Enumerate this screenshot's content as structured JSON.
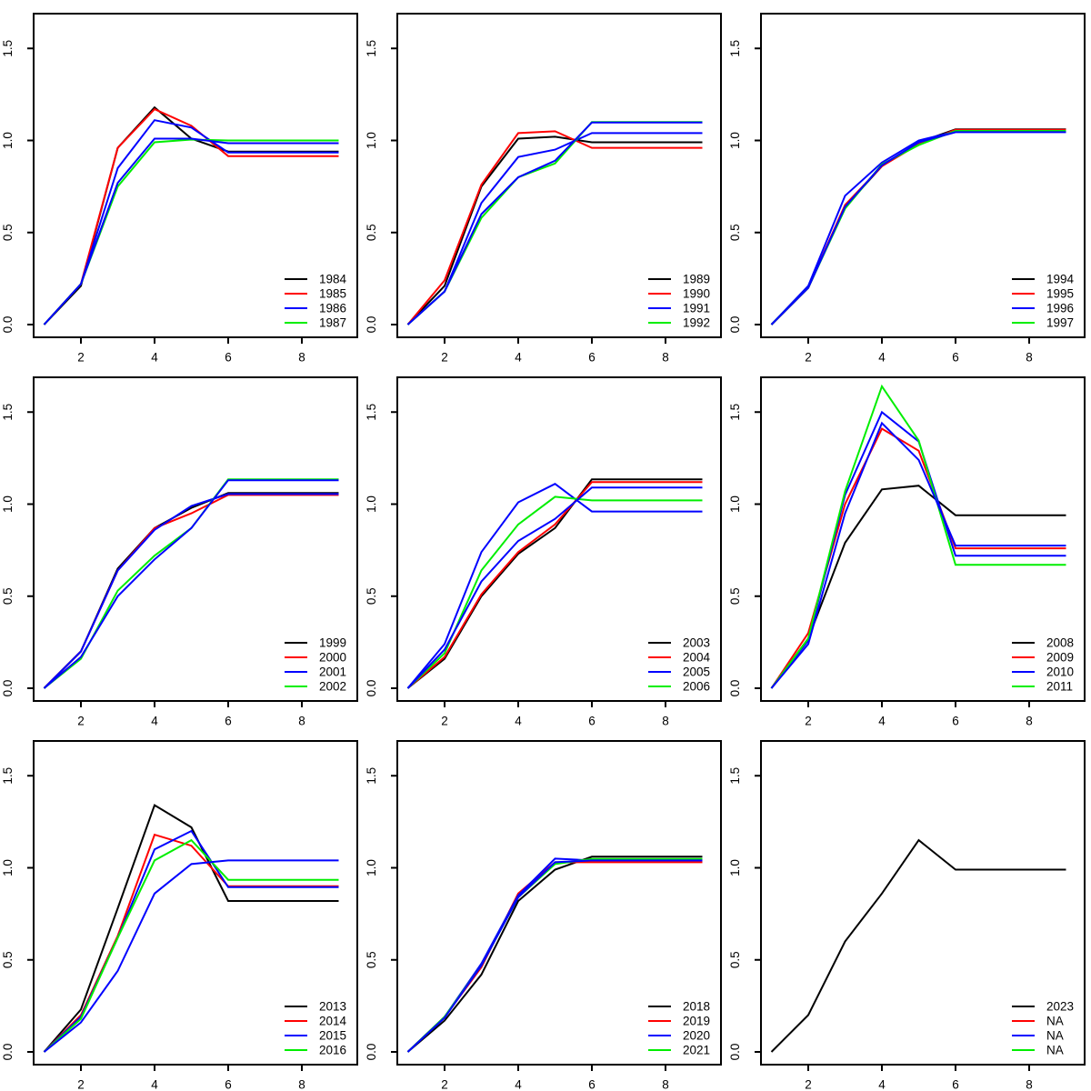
{
  "figure": {
    "title": "",
    "layout": "3x3 grid of line charts, R base-graphics style",
    "axes": {
      "x": [
        1,
        2,
        3,
        4,
        5,
        6,
        7,
        8,
        9
      ],
      "xticks": [
        2,
        4,
        6,
        8
      ],
      "xtick_labels": [
        "2",
        "4",
        "6",
        "8"
      ],
      "yticks": [
        0.0,
        0.5,
        1.0,
        1.5
      ],
      "ytick_labels": [
        "0.0",
        "0.5",
        "1.0",
        "1.5"
      ],
      "xlim": [
        1,
        9
      ],
      "ylim": [
        0,
        1.69
      ],
      "grid": "off",
      "legend_position": "bottomright"
    },
    "colors": {
      "black": "#000000",
      "red": "#ff0000",
      "blue": "#0000ff",
      "green": "#00ee00"
    }
  },
  "chart_data": [
    {
      "type": "line",
      "name": "panel-1984-1987",
      "legend": [
        {
          "label": "1984",
          "color": "#000000"
        },
        {
          "label": "1985",
          "color": "#ff0000"
        },
        {
          "label": "1986",
          "color": "#0000ff"
        },
        {
          "label": "1987",
          "color": "#00ee00"
        }
      ],
      "series": [
        {
          "name": "1984",
          "color": "#000000",
          "values": [
            0,
            0.21,
            0.96,
            1.18,
            1.01,
            0.94,
            0.94,
            0.94,
            0.94
          ]
        },
        {
          "name": "1985",
          "color": "#ff0000",
          "values": [
            0,
            0.22,
            0.96,
            1.17,
            1.08,
            0.915,
            0.915,
            0.915,
            0.915
          ]
        },
        {
          "name": "1986",
          "color": "#0000ff",
          "values": [
            0,
            0.22,
            0.85,
            1.11,
            1.07,
            0.935,
            0.935,
            0.935,
            0.935
          ]
        },
        {
          "name": "1987",
          "color": "#00ee00",
          "values": [
            0,
            0.22,
            0.75,
            0.99,
            1.005,
            1.0,
            1.0,
            1.0,
            1.0
          ]
        },
        {
          "name": "unlabeled",
          "color": "#0000ff",
          "values": [
            0,
            0.22,
            0.77,
            1.01,
            1.01,
            0.985,
            0.985,
            0.985,
            0.985
          ]
        }
      ]
    },
    {
      "type": "line",
      "name": "panel-1989-1992",
      "legend": [
        {
          "label": "1989",
          "color": "#000000"
        },
        {
          "label": "1990",
          "color": "#ff0000"
        },
        {
          "label": "1991",
          "color": "#0000ff"
        },
        {
          "label": "1992",
          "color": "#00ee00"
        }
      ],
      "series": [
        {
          "name": "1989",
          "color": "#000000",
          "values": [
            0,
            0.21,
            0.75,
            1.01,
            1.02,
            0.99,
            0.99,
            0.99,
            0.99
          ]
        },
        {
          "name": "1990",
          "color": "#ff0000",
          "values": [
            0,
            0.24,
            0.76,
            1.04,
            1.05,
            0.96,
            0.96,
            0.96,
            0.96
          ]
        },
        {
          "name": "1991",
          "color": "#0000ff",
          "values": [
            0,
            0.18,
            0.66,
            0.91,
            0.95,
            1.04,
            1.04,
            1.04,
            1.04
          ]
        },
        {
          "name": "1992",
          "color": "#00ee00",
          "values": [
            0,
            0.18,
            0.58,
            0.8,
            0.875,
            1.1,
            1.1,
            1.1,
            1.1
          ]
        },
        {
          "name": "unlabeled",
          "color": "#0000ff",
          "values": [
            0,
            0.18,
            0.6,
            0.8,
            0.89,
            1.098,
            1.098,
            1.098,
            1.098
          ]
        }
      ]
    },
    {
      "type": "line",
      "name": "panel-1994-1997",
      "legend": [
        {
          "label": "1994",
          "color": "#000000"
        },
        {
          "label": "1995",
          "color": "#ff0000"
        },
        {
          "label": "1996",
          "color": "#0000ff"
        },
        {
          "label": "1997",
          "color": "#00ee00"
        }
      ],
      "series": [
        {
          "name": "1994",
          "color": "#000000",
          "values": [
            0,
            0.2,
            0.64,
            0.86,
            0.99,
            1.06,
            1.06,
            1.06,
            1.06
          ]
        },
        {
          "name": "1995",
          "color": "#ff0000",
          "values": [
            0,
            0.2,
            0.65,
            0.86,
            0.98,
            1.058,
            1.058,
            1.058,
            1.058
          ]
        },
        {
          "name": "1996",
          "color": "#0000ff",
          "values": [
            0,
            0.21,
            0.7,
            0.88,
            1.0,
            1.048,
            1.048,
            1.048,
            1.048
          ]
        },
        {
          "name": "1997",
          "color": "#00ee00",
          "values": [
            0,
            0.2,
            0.63,
            0.87,
            0.975,
            1.052,
            1.052,
            1.052,
            1.052
          ]
        },
        {
          "name": "unlabeled",
          "color": "#0000ff",
          "values": [
            0,
            0.2,
            0.64,
            0.865,
            0.99,
            1.045,
            1.045,
            1.045,
            1.045
          ]
        }
      ]
    },
    {
      "type": "line",
      "name": "panel-1999-2002",
      "legend": [
        {
          "label": "1999",
          "color": "#000000"
        },
        {
          "label": "2000",
          "color": "#ff0000"
        },
        {
          "label": "2001",
          "color": "#0000ff"
        },
        {
          "label": "2002",
          "color": "#00ee00"
        }
      ],
      "series": [
        {
          "name": "1999",
          "color": "#000000",
          "values": [
            0,
            0.2,
            0.65,
            0.87,
            0.98,
            1.06,
            1.06,
            1.06,
            1.06
          ]
        },
        {
          "name": "2000",
          "color": "#ff0000",
          "values": [
            0,
            0.2,
            0.64,
            0.87,
            0.95,
            1.05,
            1.05,
            1.05,
            1.05
          ]
        },
        {
          "name": "2001",
          "color": "#0000ff",
          "values": [
            0,
            0.2,
            0.64,
            0.86,
            0.99,
            1.055,
            1.055,
            1.055,
            1.055
          ]
        },
        {
          "name": "2002",
          "color": "#00ee00",
          "values": [
            0,
            0.16,
            0.53,
            0.72,
            0.87,
            1.135,
            1.135,
            1.135,
            1.135
          ]
        },
        {
          "name": "unlabeled",
          "color": "#0000ff",
          "values": [
            0,
            0.17,
            0.5,
            0.7,
            0.87,
            1.13,
            1.13,
            1.13,
            1.13
          ]
        }
      ]
    },
    {
      "type": "line",
      "name": "panel-2003-2006",
      "legend": [
        {
          "label": "2003",
          "color": "#000000"
        },
        {
          "label": "2004",
          "color": "#ff0000"
        },
        {
          "label": "2005",
          "color": "#0000ff"
        },
        {
          "label": "2006",
          "color": "#00ee00"
        }
      ],
      "series": [
        {
          "name": "2003",
          "color": "#000000",
          "values": [
            0,
            0.16,
            0.5,
            0.73,
            0.87,
            1.135,
            1.135,
            1.135,
            1.135
          ]
        },
        {
          "name": "2004",
          "color": "#ff0000",
          "values": [
            0,
            0.17,
            0.51,
            0.74,
            0.89,
            1.12,
            1.12,
            1.12,
            1.12
          ]
        },
        {
          "name": "2005",
          "color": "#0000ff",
          "values": [
            0,
            0.24,
            0.74,
            1.01,
            1.11,
            0.96,
            0.96,
            0.96,
            0.96
          ]
        },
        {
          "name": "2006",
          "color": "#00ee00",
          "values": [
            0,
            0.19,
            0.64,
            0.89,
            1.04,
            1.02,
            1.02,
            1.02,
            1.02
          ]
        },
        {
          "name": "unlabeled",
          "color": "#0000ff",
          "values": [
            0,
            0.21,
            0.58,
            0.8,
            0.92,
            1.09,
            1.09,
            1.09,
            1.09
          ]
        }
      ]
    },
    {
      "type": "line",
      "name": "panel-2008-2011",
      "legend": [
        {
          "label": "2008",
          "color": "#000000"
        },
        {
          "label": "2009",
          "color": "#ff0000"
        },
        {
          "label": "2010",
          "color": "#0000ff"
        },
        {
          "label": "2011",
          "color": "#00ee00"
        }
      ],
      "series": [
        {
          "name": "2008",
          "color": "#000000",
          "values": [
            0,
            0.27,
            0.79,
            1.08,
            1.1,
            0.94,
            0.94,
            0.94,
            0.94
          ]
        },
        {
          "name": "2009",
          "color": "#ff0000",
          "values": [
            0,
            0.3,
            1.0,
            1.41,
            1.29,
            0.76,
            0.76,
            0.76,
            0.76
          ]
        },
        {
          "name": "2010",
          "color": "#0000ff",
          "values": [
            0,
            0.26,
            1.05,
            1.5,
            1.34,
            0.72,
            0.72,
            0.72,
            0.72
          ]
        },
        {
          "name": "2011",
          "color": "#00ee00",
          "values": [
            0,
            0.27,
            1.07,
            1.64,
            1.345,
            0.67,
            0.67,
            0.67,
            0.67
          ]
        },
        {
          "name": "unlabeled",
          "color": "#0000ff",
          "values": [
            0,
            0.24,
            0.95,
            1.44,
            1.24,
            0.775,
            0.775,
            0.775,
            0.775
          ]
        }
      ]
    },
    {
      "type": "line",
      "name": "panel-2013-2016",
      "legend": [
        {
          "label": "2013",
          "color": "#000000"
        },
        {
          "label": "2014",
          "color": "#ff0000"
        },
        {
          "label": "2015",
          "color": "#0000ff"
        },
        {
          "label": "2016",
          "color": "#00ee00"
        }
      ],
      "series": [
        {
          "name": "2013",
          "color": "#000000",
          "values": [
            0,
            0.23,
            0.78,
            1.34,
            1.22,
            0.82,
            0.82,
            0.82,
            0.82
          ]
        },
        {
          "name": "2014",
          "color": "#ff0000",
          "values": [
            0,
            0.2,
            0.63,
            1.18,
            1.12,
            0.9,
            0.9,
            0.9,
            0.9
          ]
        },
        {
          "name": "2015",
          "color": "#0000ff",
          "values": [
            0,
            0.19,
            0.62,
            1.1,
            1.2,
            0.895,
            0.895,
            0.895,
            0.895
          ]
        },
        {
          "name": "2016",
          "color": "#00ee00",
          "values": [
            0,
            0.18,
            0.62,
            1.04,
            1.15,
            0.935,
            0.935,
            0.935,
            0.935
          ]
        },
        {
          "name": "unlabeled",
          "color": "#0000ff",
          "values": [
            0,
            0.16,
            0.44,
            0.86,
            1.02,
            1.04,
            1.04,
            1.04,
            1.04
          ]
        }
      ]
    },
    {
      "type": "line",
      "name": "panel-2018-2021",
      "legend": [
        {
          "label": "2018",
          "color": "#000000"
        },
        {
          "label": "2019",
          "color": "#ff0000"
        },
        {
          "label": "2020",
          "color": "#0000ff"
        },
        {
          "label": "2021",
          "color": "#00ee00"
        }
      ],
      "series": [
        {
          "name": "2018",
          "color": "#000000",
          "values": [
            0,
            0.17,
            0.42,
            0.82,
            0.99,
            1.06,
            1.06,
            1.06,
            1.06
          ]
        },
        {
          "name": "2019",
          "color": "#ff0000",
          "values": [
            0,
            0.19,
            0.46,
            0.86,
            1.03,
            1.03,
            1.03,
            1.03,
            1.03
          ]
        },
        {
          "name": "2020",
          "color": "#0000ff",
          "values": [
            0,
            0.19,
            0.48,
            0.85,
            1.05,
            1.04,
            1.04,
            1.04,
            1.04
          ]
        },
        {
          "name": "2021",
          "color": "#00ee00",
          "values": [
            0,
            0.19,
            0.47,
            0.84,
            1.02,
            1.048,
            1.048,
            1.048,
            1.048
          ]
        },
        {
          "name": "unlabeled",
          "color": "#0000ff",
          "values": [
            0,
            0.185,
            0.47,
            0.84,
            1.03,
            1.04,
            1.04,
            1.04,
            1.04
          ]
        }
      ]
    },
    {
      "type": "line",
      "name": "panel-2023",
      "legend": [
        {
          "label": "2023",
          "color": "#000000"
        },
        {
          "label": "NA",
          "color": "#ff0000"
        },
        {
          "label": "NA",
          "color": "#0000ff"
        },
        {
          "label": "NA",
          "color": "#00ee00"
        }
      ],
      "series": [
        {
          "name": "2023",
          "color": "#000000",
          "values": [
            0,
            0.2,
            0.6,
            0.86,
            1.15,
            0.99,
            0.99,
            0.99,
            0.99
          ]
        }
      ]
    }
  ]
}
